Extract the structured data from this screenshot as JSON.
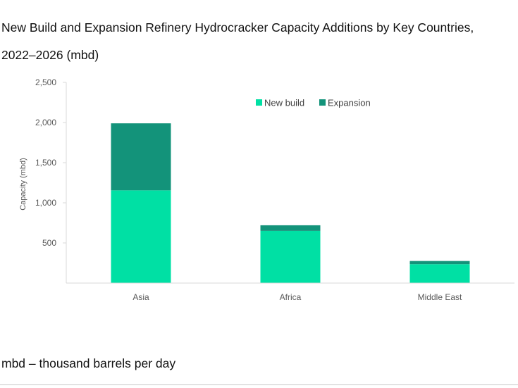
{
  "chart_data": {
    "type": "bar",
    "stacked": true,
    "title_line1": "New Build and Expansion Refinery Hydrocracker Capacity Additions by Key Countries,",
    "title_line2": "2022–2026 (mbd)",
    "xlabel": "",
    "ylabel": "Capacity (mbd)",
    "categories": [
      "Asia",
      "Africa",
      "Middle East"
    ],
    "series": [
      {
        "name": "New build",
        "color": "#00e0a4",
        "values": [
          1155,
          650,
          235
        ]
      },
      {
        "name": "Expansion",
        "color": "#13937a",
        "values": [
          835,
          70,
          40
        ]
      }
    ],
    "ylim": [
      0,
      2500
    ],
    "yticks": [
      500,
      1000,
      1500,
      2000,
      2500
    ],
    "ytick_labels": [
      "500",
      "1,000",
      "1,500",
      "2,000",
      "2,500"
    ],
    "legend_position": "top-right",
    "grid": false
  },
  "footnote": "mbd – thousand barrels per day"
}
